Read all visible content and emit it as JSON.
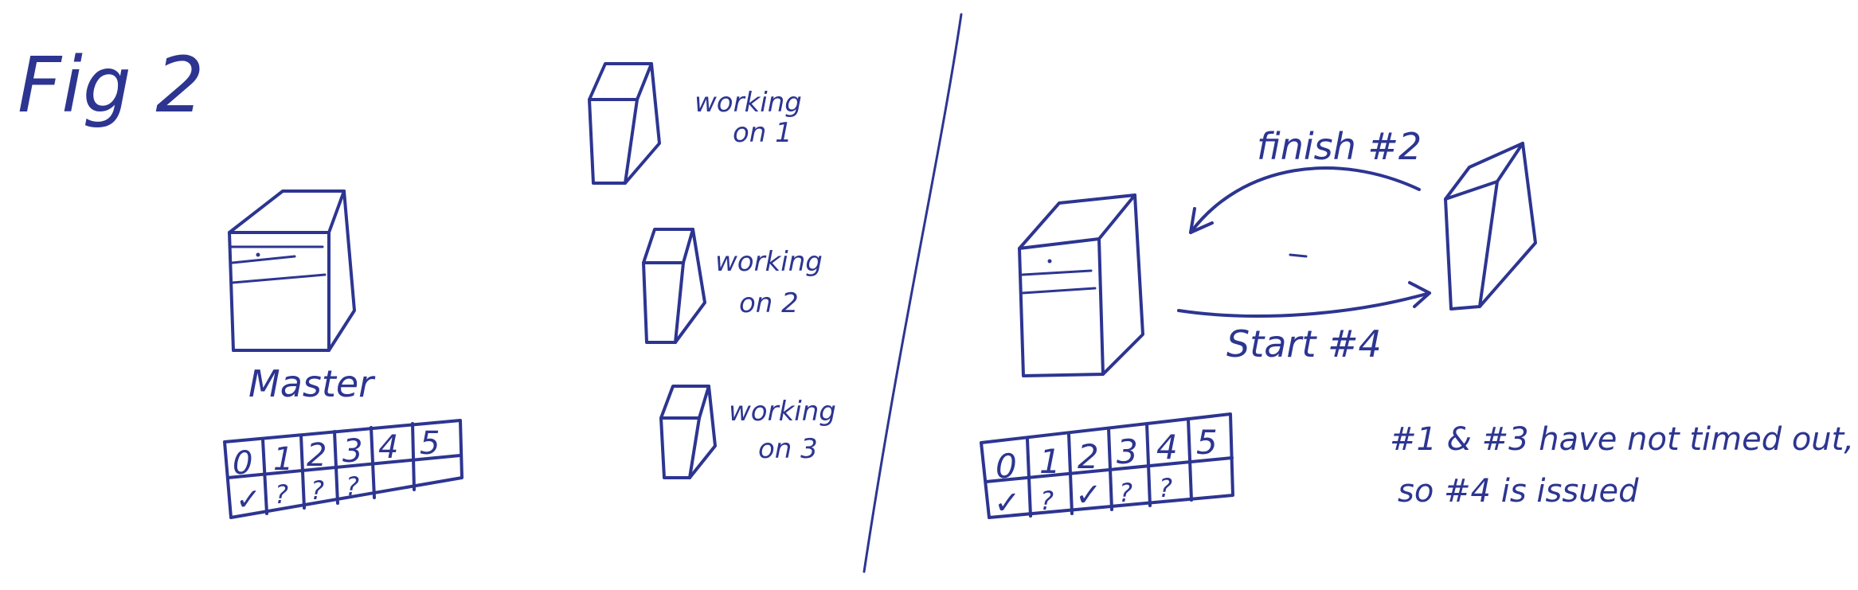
{
  "figure_label": "Fig 2",
  "left_panel": {
    "master_label": "Master",
    "table": {
      "indices": [
        "0",
        "1",
        "2",
        "3",
        "4",
        "5"
      ],
      "statuses": [
        "✓",
        "?",
        "?",
        "?",
        "",
        ""
      ]
    },
    "workers": [
      {
        "line1": "working",
        "line2": "on 1"
      },
      {
        "line1": "working",
        "line2": "on 2"
      },
      {
        "line1": "working",
        "line2": "on 3"
      }
    ]
  },
  "right_panel": {
    "top_arrow_label": "finish #2",
    "bottom_arrow_label": "Start #4",
    "table": {
      "indices": [
        "0",
        "1",
        "2",
        "3",
        "4",
        "5"
      ],
      "statuses": [
        "✓",
        "?",
        "✓",
        "?",
        "?",
        ""
      ]
    },
    "note_line1": "#1 & #3 have not timed out,",
    "note_line2": "so #4 is issued"
  }
}
